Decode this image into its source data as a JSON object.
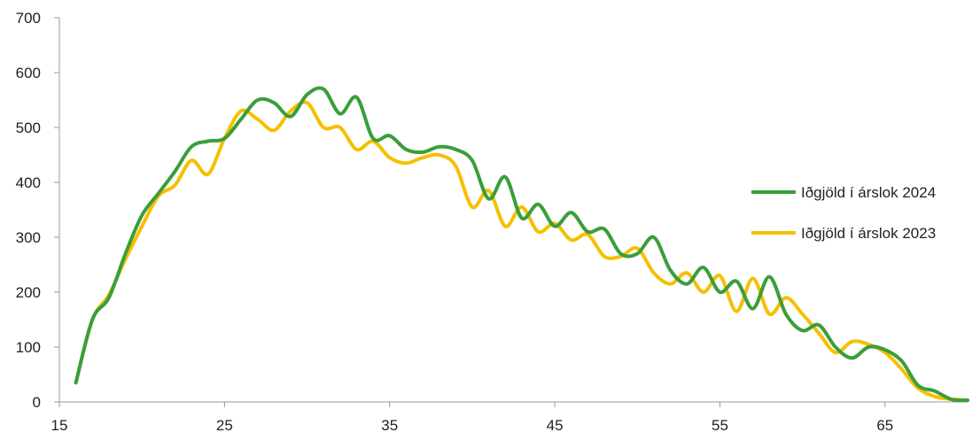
{
  "chart_data": {
    "type": "line",
    "title": "",
    "xlabel": "",
    "ylabel": "",
    "xlim": [
      15,
      70
    ],
    "ylim": [
      0,
      700
    ],
    "xticks": [
      15,
      25,
      35,
      45,
      55,
      65
    ],
    "yticks": [
      0,
      100,
      200,
      300,
      400,
      500,
      600,
      700
    ],
    "grid": false,
    "legend_position": "right",
    "series": [
      {
        "name": "Iðgjöld í árslok 2024",
        "color": "#3a9e3a",
        "x": [
          16,
          17,
          18,
          19,
          20,
          21,
          22,
          23,
          24,
          25,
          26,
          27,
          28,
          29,
          30,
          31,
          32,
          33,
          34,
          35,
          36,
          37,
          38,
          39,
          40,
          41,
          42,
          43,
          44,
          45,
          46,
          47,
          48,
          49,
          50,
          51,
          52,
          53,
          54,
          55,
          56,
          57,
          58,
          59,
          60,
          61,
          62,
          63,
          64,
          65,
          66,
          67,
          68,
          69,
          70
        ],
        "values": [
          35,
          150,
          190,
          270,
          340,
          380,
          420,
          465,
          475,
          480,
          515,
          550,
          545,
          520,
          560,
          570,
          525,
          555,
          480,
          485,
          460,
          455,
          465,
          460,
          440,
          370,
          410,
          335,
          360,
          320,
          345,
          310,
          315,
          270,
          270,
          300,
          240,
          215,
          245,
          200,
          220,
          170,
          228,
          160,
          130,
          140,
          100,
          80,
          100,
          95,
          75,
          30,
          20,
          5,
          3
        ]
      },
      {
        "name": "Iðgjöld í árslok 2023",
        "color": "#f5c000",
        "x": [
          16,
          17,
          18,
          19,
          20,
          21,
          22,
          23,
          24,
          25,
          26,
          27,
          28,
          29,
          30,
          31,
          32,
          33,
          34,
          35,
          36,
          37,
          38,
          39,
          40,
          41,
          42,
          43,
          44,
          45,
          46,
          47,
          48,
          49,
          50,
          51,
          52,
          53,
          54,
          55,
          56,
          57,
          58,
          59,
          60,
          61,
          62,
          63,
          64,
          65,
          66,
          67,
          68,
          69,
          70
        ],
        "values": [
          35,
          150,
          195,
          260,
          320,
          375,
          395,
          440,
          415,
          480,
          530,
          515,
          495,
          530,
          545,
          500,
          500,
          460,
          475,
          445,
          435,
          445,
          450,
          430,
          355,
          385,
          320,
          355,
          310,
          325,
          295,
          305,
          265,
          265,
          280,
          235,
          215,
          235,
          200,
          230,
          165,
          225,
          160,
          190,
          160,
          125,
          90,
          110,
          105,
          90,
          60,
          25,
          10,
          5,
          3
        ]
      }
    ]
  }
}
